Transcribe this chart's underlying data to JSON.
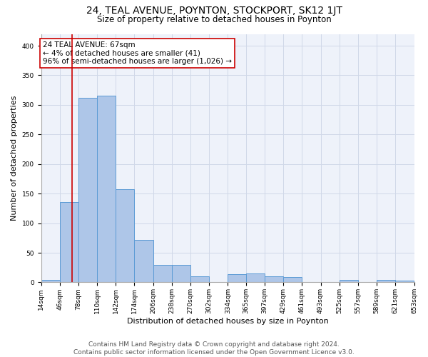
{
  "title": "24, TEAL AVENUE, POYNTON, STOCKPORT, SK12 1JT",
  "subtitle": "Size of property relative to detached houses in Poynton",
  "xlabel": "Distribution of detached houses by size in Poynton",
  "ylabel": "Number of detached properties",
  "bin_edges": [
    14,
    46,
    78,
    110,
    142,
    174,
    206,
    238,
    270,
    302,
    334,
    365,
    397,
    429,
    461,
    493,
    525,
    557,
    589,
    621,
    653
  ],
  "bar_heights": [
    4,
    136,
    312,
    316,
    157,
    72,
    30,
    30,
    10,
    0,
    14,
    15,
    10,
    9,
    0,
    0,
    4,
    0,
    4,
    3
  ],
  "bar_color": "#aec6e8",
  "bar_edge_color": "#5b9bd5",
  "property_size": 67,
  "property_line_color": "#cc0000",
  "annotation_text": "24 TEAL AVENUE: 67sqm\n← 4% of detached houses are smaller (41)\n96% of semi-detached houses are larger (1,026) →",
  "annotation_box_color": "#ffffff",
  "annotation_box_edge_color": "#cc0000",
  "ylim": [
    0,
    420
  ],
  "yticks": [
    0,
    50,
    100,
    150,
    200,
    250,
    300,
    350,
    400
  ],
  "grid_color": "#d0d8e8",
  "background_color": "#eef2fa",
  "footer_line1": "Contains HM Land Registry data © Crown copyright and database right 2024.",
  "footer_line2": "Contains public sector information licensed under the Open Government Licence v3.0.",
  "title_fontsize": 10,
  "subtitle_fontsize": 8.5,
  "axis_label_fontsize": 8,
  "tick_fontsize": 6.5,
  "annotation_fontsize": 7.5,
  "footer_fontsize": 6.5
}
